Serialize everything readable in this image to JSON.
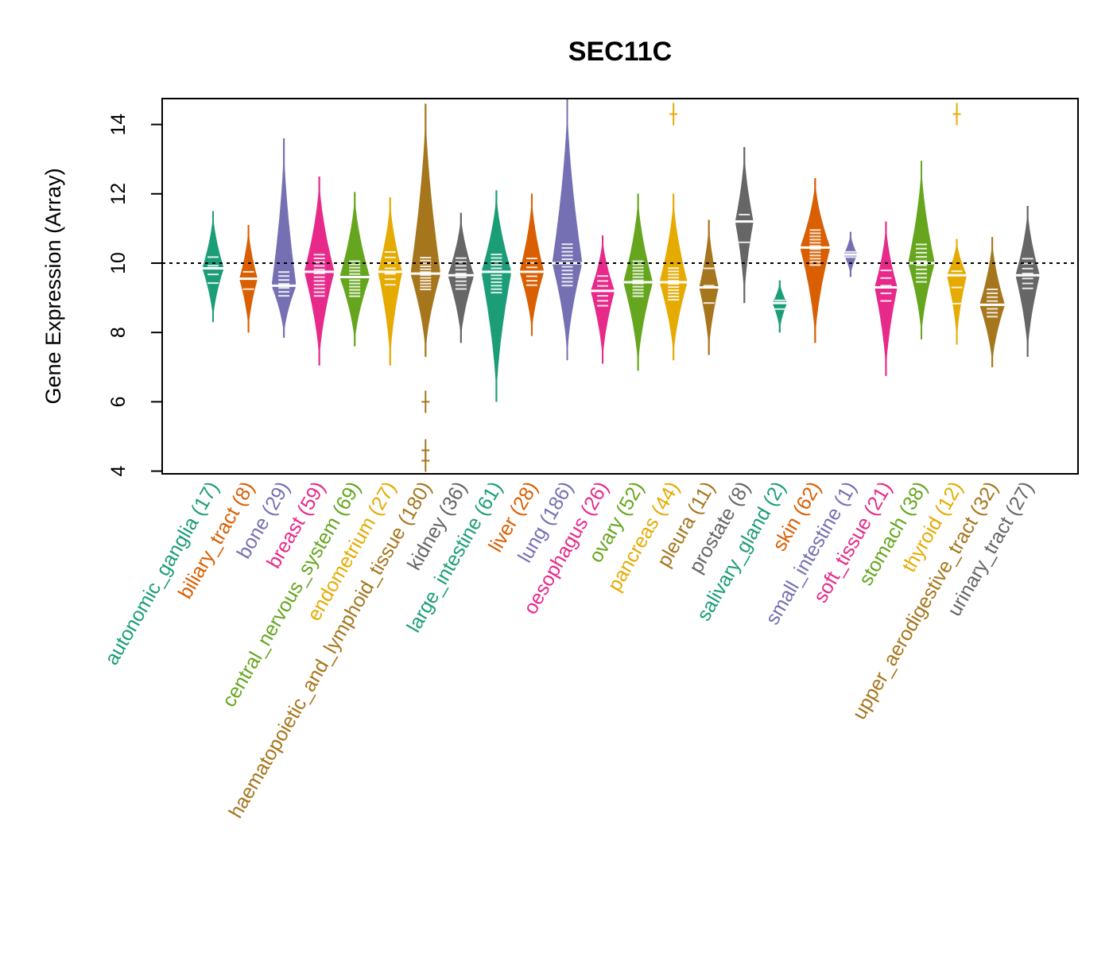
{
  "chart_data": {
    "type": "violin",
    "title": "SEC11C",
    "xlabel": "",
    "ylabel": "Gene Expression (Array)",
    "ylim": [
      3.9,
      14.75
    ],
    "yticks": [
      4,
      6,
      8,
      10,
      12,
      14
    ],
    "reference_line": 10,
    "grid": false,
    "legend": "none",
    "categories": [
      {
        "name": "autonomic_ganglia",
        "n": 17,
        "color": "#1B9E77",
        "min": 8.3,
        "q1": 9.3,
        "median": 9.85,
        "q3": 10.3,
        "max": 11.5,
        "outliers": []
      },
      {
        "name": "biliary_tract",
        "n": 8,
        "color": "#D95F02",
        "min": 8.0,
        "q1": 9.0,
        "median": 9.55,
        "q3": 10.0,
        "max": 11.1,
        "outliers": []
      },
      {
        "name": "bone",
        "n": 29,
        "color": "#7570B3",
        "min": 7.85,
        "q1": 9.0,
        "median": 9.35,
        "q3": 9.8,
        "max": 13.6,
        "outliers": []
      },
      {
        "name": "breast",
        "n": 59,
        "color": "#E7298A",
        "min": 7.05,
        "q1": 9.0,
        "median": 9.75,
        "q3": 10.3,
        "max": 12.5,
        "outliers": []
      },
      {
        "name": "central_nervous_system",
        "n": 69,
        "color": "#66A61E",
        "min": 7.6,
        "q1": 9.0,
        "median": 9.6,
        "q3": 10.1,
        "max": 12.05,
        "outliers": []
      },
      {
        "name": "endometrium",
        "n": 27,
        "color": "#E6AB02",
        "min": 7.05,
        "q1": 9.3,
        "median": 9.75,
        "q3": 10.4,
        "max": 11.9,
        "outliers": []
      },
      {
        "name": "haematopoietic_and_lymphoid_tissue",
        "n": 180,
        "color": "#A6761D",
        "min": 7.3,
        "q1": 9.2,
        "median": 9.7,
        "q3": 10.2,
        "max": 14.6,
        "outliers": [
          4.3,
          4.6,
          6.0
        ]
      },
      {
        "name": "kidney",
        "n": 36,
        "color": "#666666",
        "min": 7.7,
        "q1": 9.2,
        "median": 9.65,
        "q3": 10.2,
        "max": 11.45,
        "outliers": []
      },
      {
        "name": "large_intestine",
        "n": 61,
        "color": "#1B9E77",
        "min": 6.0,
        "q1": 9.1,
        "median": 9.75,
        "q3": 10.3,
        "max": 12.1,
        "outliers": []
      },
      {
        "name": "liver",
        "n": 28,
        "color": "#D95F02",
        "min": 7.9,
        "q1": 9.3,
        "median": 9.75,
        "q3": 10.2,
        "max": 12.0,
        "outliers": []
      },
      {
        "name": "lung",
        "n": 186,
        "color": "#7570B3",
        "min": 7.2,
        "q1": 9.3,
        "median": 10.0,
        "q3": 10.6,
        "max": 14.75,
        "outliers": []
      },
      {
        "name": "oesophagus",
        "n": 26,
        "color": "#E7298A",
        "min": 7.1,
        "q1": 8.7,
        "median": 9.2,
        "q3": 9.7,
        "max": 10.8,
        "outliers": []
      },
      {
        "name": "ovary",
        "n": 52,
        "color": "#66A61E",
        "min": 6.9,
        "q1": 9.0,
        "median": 9.45,
        "q3": 10.1,
        "max": 12.0,
        "outliers": []
      },
      {
        "name": "pancreas",
        "n": 44,
        "color": "#E6AB02",
        "min": 7.2,
        "q1": 8.9,
        "median": 9.45,
        "q3": 9.9,
        "max": 12.0,
        "outliers": [
          14.3
        ]
      },
      {
        "name": "pleura",
        "n": 11,
        "color": "#A6761D",
        "min": 7.35,
        "q1": 8.6,
        "median": 9.3,
        "q3": 10.1,
        "max": 11.25,
        "outliers": []
      },
      {
        "name": "prostate",
        "n": 8,
        "color": "#666666",
        "min": 8.85,
        "q1": 10.2,
        "median": 11.2,
        "q3": 11.8,
        "max": 13.35,
        "outliers": []
      },
      {
        "name": "salivary_gland",
        "n": 2,
        "color": "#1B9E77",
        "min": 8.0,
        "q1": 8.55,
        "median": 8.85,
        "q3": 9.05,
        "max": 9.5,
        "outliers": []
      },
      {
        "name": "skin",
        "n": 62,
        "color": "#D95F02",
        "min": 7.7,
        "q1": 9.9,
        "median": 10.45,
        "q3": 11.0,
        "max": 12.45,
        "outliers": []
      },
      {
        "name": "small_intestine",
        "n": 1,
        "color": "#7570B3",
        "min": 9.6,
        "q1": 10.1,
        "median": 10.25,
        "q3": 10.4,
        "max": 10.9,
        "outliers": []
      },
      {
        "name": "soft_tissue",
        "n": 21,
        "color": "#E7298A",
        "min": 6.75,
        "q1": 8.8,
        "median": 9.3,
        "q3": 9.9,
        "max": 11.2,
        "outliers": []
      },
      {
        "name": "stomach",
        "n": 38,
        "color": "#66A61E",
        "min": 7.8,
        "q1": 9.4,
        "median": 10.0,
        "q3": 10.6,
        "max": 12.95,
        "outliers": []
      },
      {
        "name": "thyroid",
        "n": 12,
        "color": "#E6AB02",
        "min": 7.65,
        "q1": 8.6,
        "median": 9.65,
        "q3": 10.0,
        "max": 10.7,
        "outliers": [
          14.3
        ]
      },
      {
        "name": "upper_aerodigestive_tract",
        "n": 32,
        "color": "#A6761D",
        "min": 7.0,
        "q1": 8.4,
        "median": 8.8,
        "q3": 9.3,
        "max": 10.75,
        "outliers": []
      },
      {
        "name": "urinary_tract",
        "n": 27,
        "color": "#666666",
        "min": 7.3,
        "q1": 9.2,
        "median": 9.65,
        "q3": 10.2,
        "max": 11.65,
        "outliers": []
      }
    ]
  }
}
